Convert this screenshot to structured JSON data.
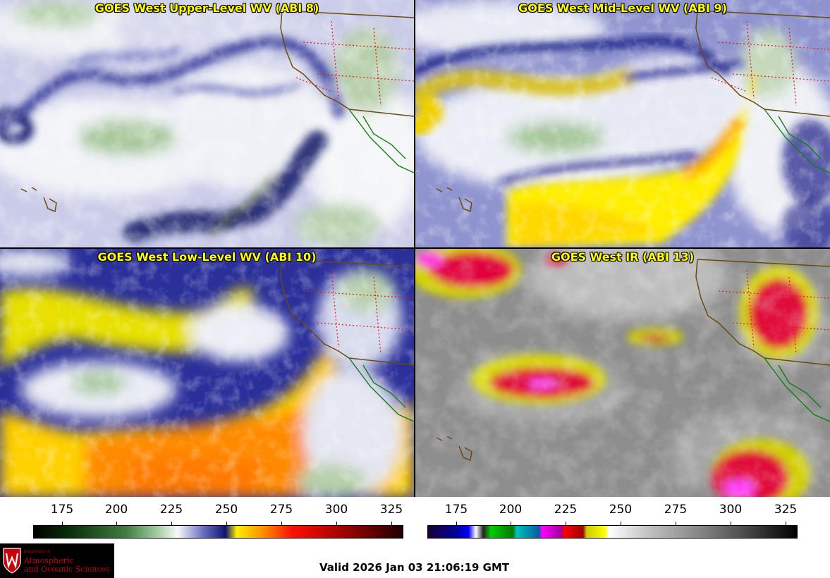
{
  "panels": [
    {
      "title": "GOES West Upper-Level WV (ABI 8)"
    },
    {
      "title": "GOES West Mid-Level WV (ABI 9)"
    },
    {
      "title": "GOES West Low-Level WV (ABI 10)"
    },
    {
      "title": "GOES West IR (ABI 13)"
    }
  ],
  "colorbar_wv": {
    "ticks": [
      "175",
      "200",
      "225",
      "250",
      "275",
      "300",
      "325"
    ],
    "colors": [
      "#000000",
      "#0b3d0b",
      "#5aa05a",
      "#f4f4f4",
      "#2a2a9a",
      "#ffe400",
      "#ff8c00",
      "#ff0000",
      "#7a0000",
      "#000000"
    ]
  },
  "colorbar_ir": {
    "ticks": [
      "175",
      "200",
      "225",
      "250",
      "275",
      "300",
      "325"
    ],
    "colors": [
      "#1a0033",
      "#0000cc",
      "#ffffff",
      "#00cc00",
      "#00aaaa",
      "#ff00ff",
      "#ff0000",
      "#cccc00",
      "#ffffff",
      "#000000"
    ]
  },
  "logo": {
    "dept": "Department of",
    "line1": "Atmospheric",
    "line2": "and Oceanic Sciences"
  },
  "valid_time": "Valid 2026 Jan 03 21:06:19 GMT"
}
